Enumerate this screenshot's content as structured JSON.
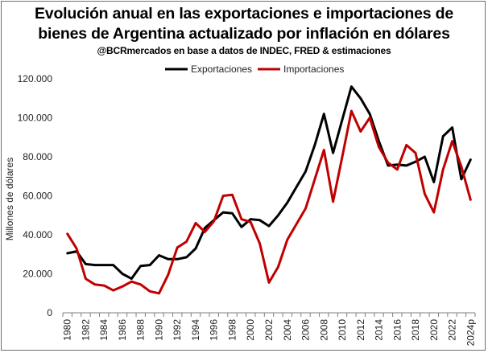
{
  "title_line1": "Evolución anual en las exportaciones e importaciones de",
  "title_line2": "bienes de Argentina actualizado por inflación en dólares",
  "subtitle": "@BCRmercados en base a datos de INDEC, FRED & estimaciones",
  "colors": {
    "exports": "#000000",
    "imports": "#c00000",
    "axis": "#7f7f7f"
  },
  "chart_data": {
    "type": "line",
    "title": "Evolución anual en las exportaciones e importaciones de bienes de Argentina actualizado por inflación en dólares",
    "ylabel": "Millones de dólares",
    "xlabel": "",
    "ylim": [
      0,
      120000
    ],
    "y_ticks": [
      0,
      20000,
      40000,
      60000,
      80000,
      100000,
      120000
    ],
    "y_tick_labels": [
      "0",
      "20.000",
      "40.000",
      "60.000",
      "80.000",
      "100.000",
      "120.000"
    ],
    "x": [
      "1980",
      "1981",
      "1982",
      "1983",
      "1984",
      "1985",
      "1986",
      "1987",
      "1988",
      "1989",
      "1990",
      "1991",
      "1992",
      "1993",
      "1994",
      "1995",
      "1996",
      "1997",
      "1998",
      "1999",
      "2000",
      "2001",
      "2002",
      "2003",
      "2004",
      "2005",
      "2006",
      "2007",
      "2008",
      "2009",
      "2010",
      "2011",
      "2012",
      "2013",
      "2014",
      "2015",
      "2016",
      "2017",
      "2018",
      "2019",
      "2020",
      "2021",
      "2022",
      "2023",
      "2024p"
    ],
    "x_tick_labels": [
      "1980",
      "1982",
      "1984",
      "1986",
      "1988",
      "1990",
      "1992",
      "1994",
      "1996",
      "1998",
      "2000",
      "2002",
      "2004",
      "2006",
      "2008",
      "2010",
      "2012",
      "2014",
      "2016",
      "2018",
      "2020",
      "2022",
      "2024p"
    ],
    "legend_position": "top-center",
    "grid": false,
    "series": [
      {
        "name": "Exportaciones",
        "color": "#000000",
        "values": [
          30500,
          31500,
          25000,
          24500,
          24500,
          24500,
          20000,
          17500,
          24000,
          24500,
          29500,
          27500,
          27500,
          28500,
          33000,
          43500,
          47500,
          51500,
          51000,
          44000,
          48000,
          47500,
          44500,
          50000,
          56500,
          64500,
          72500,
          86000,
          102000,
          82000,
          99000,
          116000,
          110000,
          102000,
          88000,
          75500,
          76000,
          75500,
          77500,
          80000,
          67000,
          90500,
          95000,
          68500,
          78500
        ]
      },
      {
        "name": "Importaciones",
        "color": "#c00000",
        "values": [
          40500,
          33000,
          17500,
          14500,
          14000,
          11500,
          13500,
          16000,
          14500,
          11000,
          10000,
          19500,
          33500,
          36500,
          46000,
          41500,
          47000,
          60000,
          60500,
          48000,
          46500,
          35500,
          15500,
          23500,
          37500,
          45500,
          53500,
          68500,
          83500,
          57000,
          80000,
          103500,
          93000,
          100000,
          85000,
          77000,
          73500,
          86000,
          82000,
          61000,
          51500,
          73500,
          88000,
          75000,
          58000
        ]
      }
    ]
  }
}
